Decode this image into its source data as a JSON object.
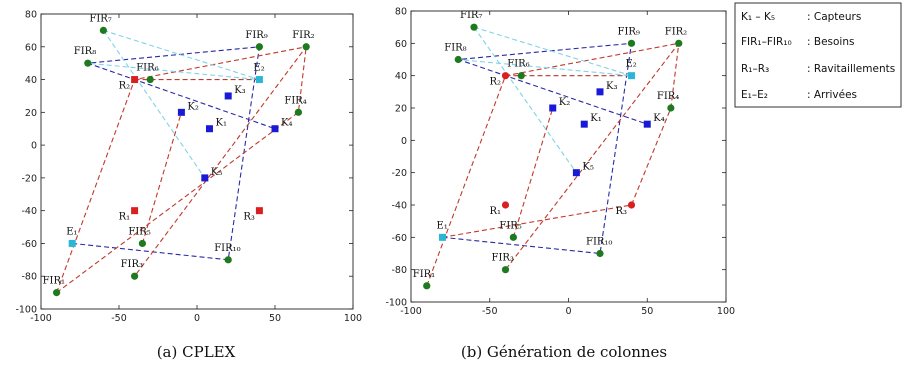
{
  "figure": {
    "legend": {
      "rows": [
        {
          "key": "K₁ – K₅",
          "desc": ": Capteurs"
        },
        {
          "key": "FIR₁–FIR₁₀",
          "desc": ": Besoins"
        },
        {
          "key": "R₁–R₃",
          "desc": ": Ravitaillements"
        },
        {
          "key": "E₁–E₂",
          "desc": ": Arrivées"
        }
      ]
    }
  },
  "chart_data": [
    {
      "type": "scatter",
      "caption": "(a)  CPLEX",
      "xlim": [
        -100,
        100
      ],
      "ylim": [
        -100,
        80
      ],
      "xticks": [
        -100,
        -50,
        0,
        50,
        100
      ],
      "yticks": [
        -100,
        -80,
        -60,
        -40,
        -20,
        0,
        20,
        40,
        60,
        80
      ],
      "grid": false,
      "colors": {
        "K": "#1a1ad6",
        "FIR": "#1e7a1e",
        "R": "#d92020",
        "E": "#2ab6d6"
      },
      "points": [
        {
          "id": "K1",
          "label": "K₁",
          "type": "K",
          "x": 8,
          "y": 10
        },
        {
          "id": "K2",
          "label": "K₂",
          "type": "K",
          "x": -10,
          "y": 20
        },
        {
          "id": "K3",
          "label": "K₃",
          "type": "K",
          "x": 20,
          "y": 30
        },
        {
          "id": "K4",
          "label": "K₄",
          "type": "K",
          "x": 50,
          "y": 10
        },
        {
          "id": "K5",
          "label": "K₅",
          "type": "K",
          "x": 5,
          "y": -20
        },
        {
          "id": "FIR1",
          "label": "FIR₁",
          "type": "FIR",
          "x": -90,
          "y": -90
        },
        {
          "id": "FIR2",
          "label": "FIR₂",
          "type": "FIR",
          "x": 70,
          "y": 60
        },
        {
          "id": "FIR3",
          "label": "FIR₃",
          "type": "FIR",
          "x": -40,
          "y": -80
        },
        {
          "id": "FIR4",
          "label": "FIR₄",
          "type": "FIR",
          "x": 65,
          "y": 20
        },
        {
          "id": "FIR5",
          "label": "FIR₅",
          "type": "FIR",
          "x": -35,
          "y": -60
        },
        {
          "id": "FIR6",
          "label": "FIR₆",
          "type": "FIR",
          "x": -30,
          "y": 40
        },
        {
          "id": "FIR7",
          "label": "FIR₇",
          "type": "FIR",
          "x": -60,
          "y": 70
        },
        {
          "id": "FIR8",
          "label": "FIR₈",
          "type": "FIR",
          "x": -70,
          "y": 50
        },
        {
          "id": "FIR9",
          "label": "FIR₉",
          "type": "FIR",
          "x": 40,
          "y": 60
        },
        {
          "id": "FIR10",
          "label": "FIR₁₀",
          "type": "FIR",
          "x": 20,
          "y": -70
        },
        {
          "id": "R1",
          "label": "R₁",
          "type": "R",
          "x": -40,
          "y": -40
        },
        {
          "id": "R2",
          "label": "R₂",
          "type": "R",
          "x": -40,
          "y": 40
        },
        {
          "id": "R3",
          "label": "R₃",
          "type": "R",
          "x": 40,
          "y": -40
        },
        {
          "id": "E1",
          "label": "E₁",
          "type": "E",
          "x": -80,
          "y": -60
        },
        {
          "id": "E2",
          "label": "E₂",
          "type": "E",
          "x": 40,
          "y": 40
        }
      ],
      "routes": [
        {
          "color": "blue",
          "path": [
            [
              -80,
              -60
            ],
            [
              20,
              -70
            ],
            [
              40,
              60
            ],
            [
              -70,
              50
            ],
            [
              50,
              10
            ]
          ]
        },
        {
          "color": "red",
          "path": [
            [
              -90,
              -90
            ],
            [
              -40,
              40
            ],
            [
              70,
              60
            ],
            [
              -40,
              -80
            ]
          ]
        },
        {
          "color": "red",
          "path": [
            [
              -90,
              -90
            ],
            [
              65,
              20
            ],
            [
              70,
              60
            ]
          ]
        },
        {
          "color": "red",
          "path": [
            [
              -40,
              40
            ],
            [
              -30,
              40
            ],
            [
              40,
              40
            ]
          ]
        },
        {
          "color": "red",
          "path": [
            [
              -35,
              -60
            ],
            [
              -10,
              20
            ]
          ]
        },
        {
          "color": "cyan",
          "path": [
            [
              -60,
              70
            ],
            [
              40,
              40
            ],
            [
              -70,
              50
            ]
          ]
        },
        {
          "color": "cyan",
          "path": [
            [
              -60,
              70
            ],
            [
              5,
              -20
            ]
          ]
        }
      ]
    },
    {
      "type": "scatter",
      "caption": "(b)  Génération de colonnes",
      "xlim": [
        -100,
        100
      ],
      "ylim": [
        -100,
        80
      ],
      "xticks": [
        -100,
        -50,
        0,
        50,
        100
      ],
      "yticks": [
        -100,
        -80,
        -60,
        -40,
        -20,
        0,
        20,
        40,
        60,
        80
      ],
      "grid": false,
      "colors": {
        "K": "#1a1ad6",
        "FIR": "#1e7a1e",
        "R": "#d92020",
        "E": "#2ab6d6"
      },
      "points": [
        {
          "id": "K1",
          "label": "K₁",
          "type": "K",
          "x": 10,
          "y": 10
        },
        {
          "id": "K2",
          "label": "K₂",
          "type": "K",
          "x": -10,
          "y": 20
        },
        {
          "id": "K3",
          "label": "K₃",
          "type": "K",
          "x": 20,
          "y": 30
        },
        {
          "id": "K4",
          "label": "K₄",
          "type": "K",
          "x": 50,
          "y": 10
        },
        {
          "id": "K5",
          "label": "K₅",
          "type": "K",
          "x": 5,
          "y": -20
        },
        {
          "id": "FIR1",
          "label": "FIR₁",
          "type": "FIR",
          "x": -90,
          "y": -90
        },
        {
          "id": "FIR2",
          "label": "FIR₂",
          "type": "FIR",
          "x": 70,
          "y": 60
        },
        {
          "id": "FIR3",
          "label": "FIR₃",
          "type": "FIR",
          "x": -40,
          "y": -80
        },
        {
          "id": "FIR4",
          "label": "FIR₄",
          "type": "FIR",
          "x": 65,
          "y": 20
        },
        {
          "id": "FIR5",
          "label": "FIR₅",
          "type": "FIR",
          "x": -35,
          "y": -60
        },
        {
          "id": "FIR6",
          "label": "FIR₆",
          "type": "FIR",
          "x": -30,
          "y": 40
        },
        {
          "id": "FIR7",
          "label": "FIR₇",
          "type": "FIR",
          "x": -60,
          "y": 70
        },
        {
          "id": "FIR8",
          "label": "FIR₈",
          "type": "FIR",
          "x": -70,
          "y": 50
        },
        {
          "id": "FIR9",
          "label": "FIR₉",
          "type": "FIR",
          "x": 40,
          "y": 60
        },
        {
          "id": "FIR10",
          "label": "FIR₁₀",
          "type": "FIR",
          "x": 20,
          "y": -70
        },
        {
          "id": "R1",
          "label": "R₁",
          "type": "R",
          "x": -40,
          "y": -40
        },
        {
          "id": "R2",
          "label": "R₂",
          "type": "R",
          "x": -40,
          "y": 40
        },
        {
          "id": "R3",
          "label": "R₃",
          "type": "R",
          "x": 40,
          "y": -40
        },
        {
          "id": "E1",
          "label": "E₁",
          "type": "E",
          "x": -80,
          "y": -60
        },
        {
          "id": "E2",
          "label": "E₂",
          "type": "E",
          "x": 40,
          "y": 40
        }
      ],
      "routes": [
        {
          "color": "blue",
          "path": [
            [
              -80,
              -60
            ],
            [
              20,
              -70
            ],
            [
              40,
              60
            ],
            [
              -70,
              50
            ],
            [
              50,
              10
            ]
          ]
        },
        {
          "color": "red",
          "path": [
            [
              -90,
              -90
            ],
            [
              -40,
              40
            ],
            [
              70,
              60
            ],
            [
              -40,
              -80
            ]
          ]
        },
        {
          "color": "red",
          "path": [
            [
              -80,
              -60
            ],
            [
              40,
              -40
            ],
            [
              65,
              20
            ],
            [
              70,
              60
            ]
          ]
        },
        {
          "color": "red",
          "path": [
            [
              -40,
              40
            ],
            [
              -30,
              40
            ],
            [
              40,
              40
            ]
          ]
        },
        {
          "color": "red",
          "path": [
            [
              -35,
              -60
            ],
            [
              -10,
              20
            ]
          ]
        },
        {
          "color": "cyan",
          "path": [
            [
              -60,
              70
            ],
            [
              40,
              40
            ],
            [
              -70,
              50
            ]
          ]
        },
        {
          "color": "cyan",
          "path": [
            [
              -60,
              70
            ],
            [
              5,
              -20
            ]
          ]
        }
      ]
    }
  ]
}
